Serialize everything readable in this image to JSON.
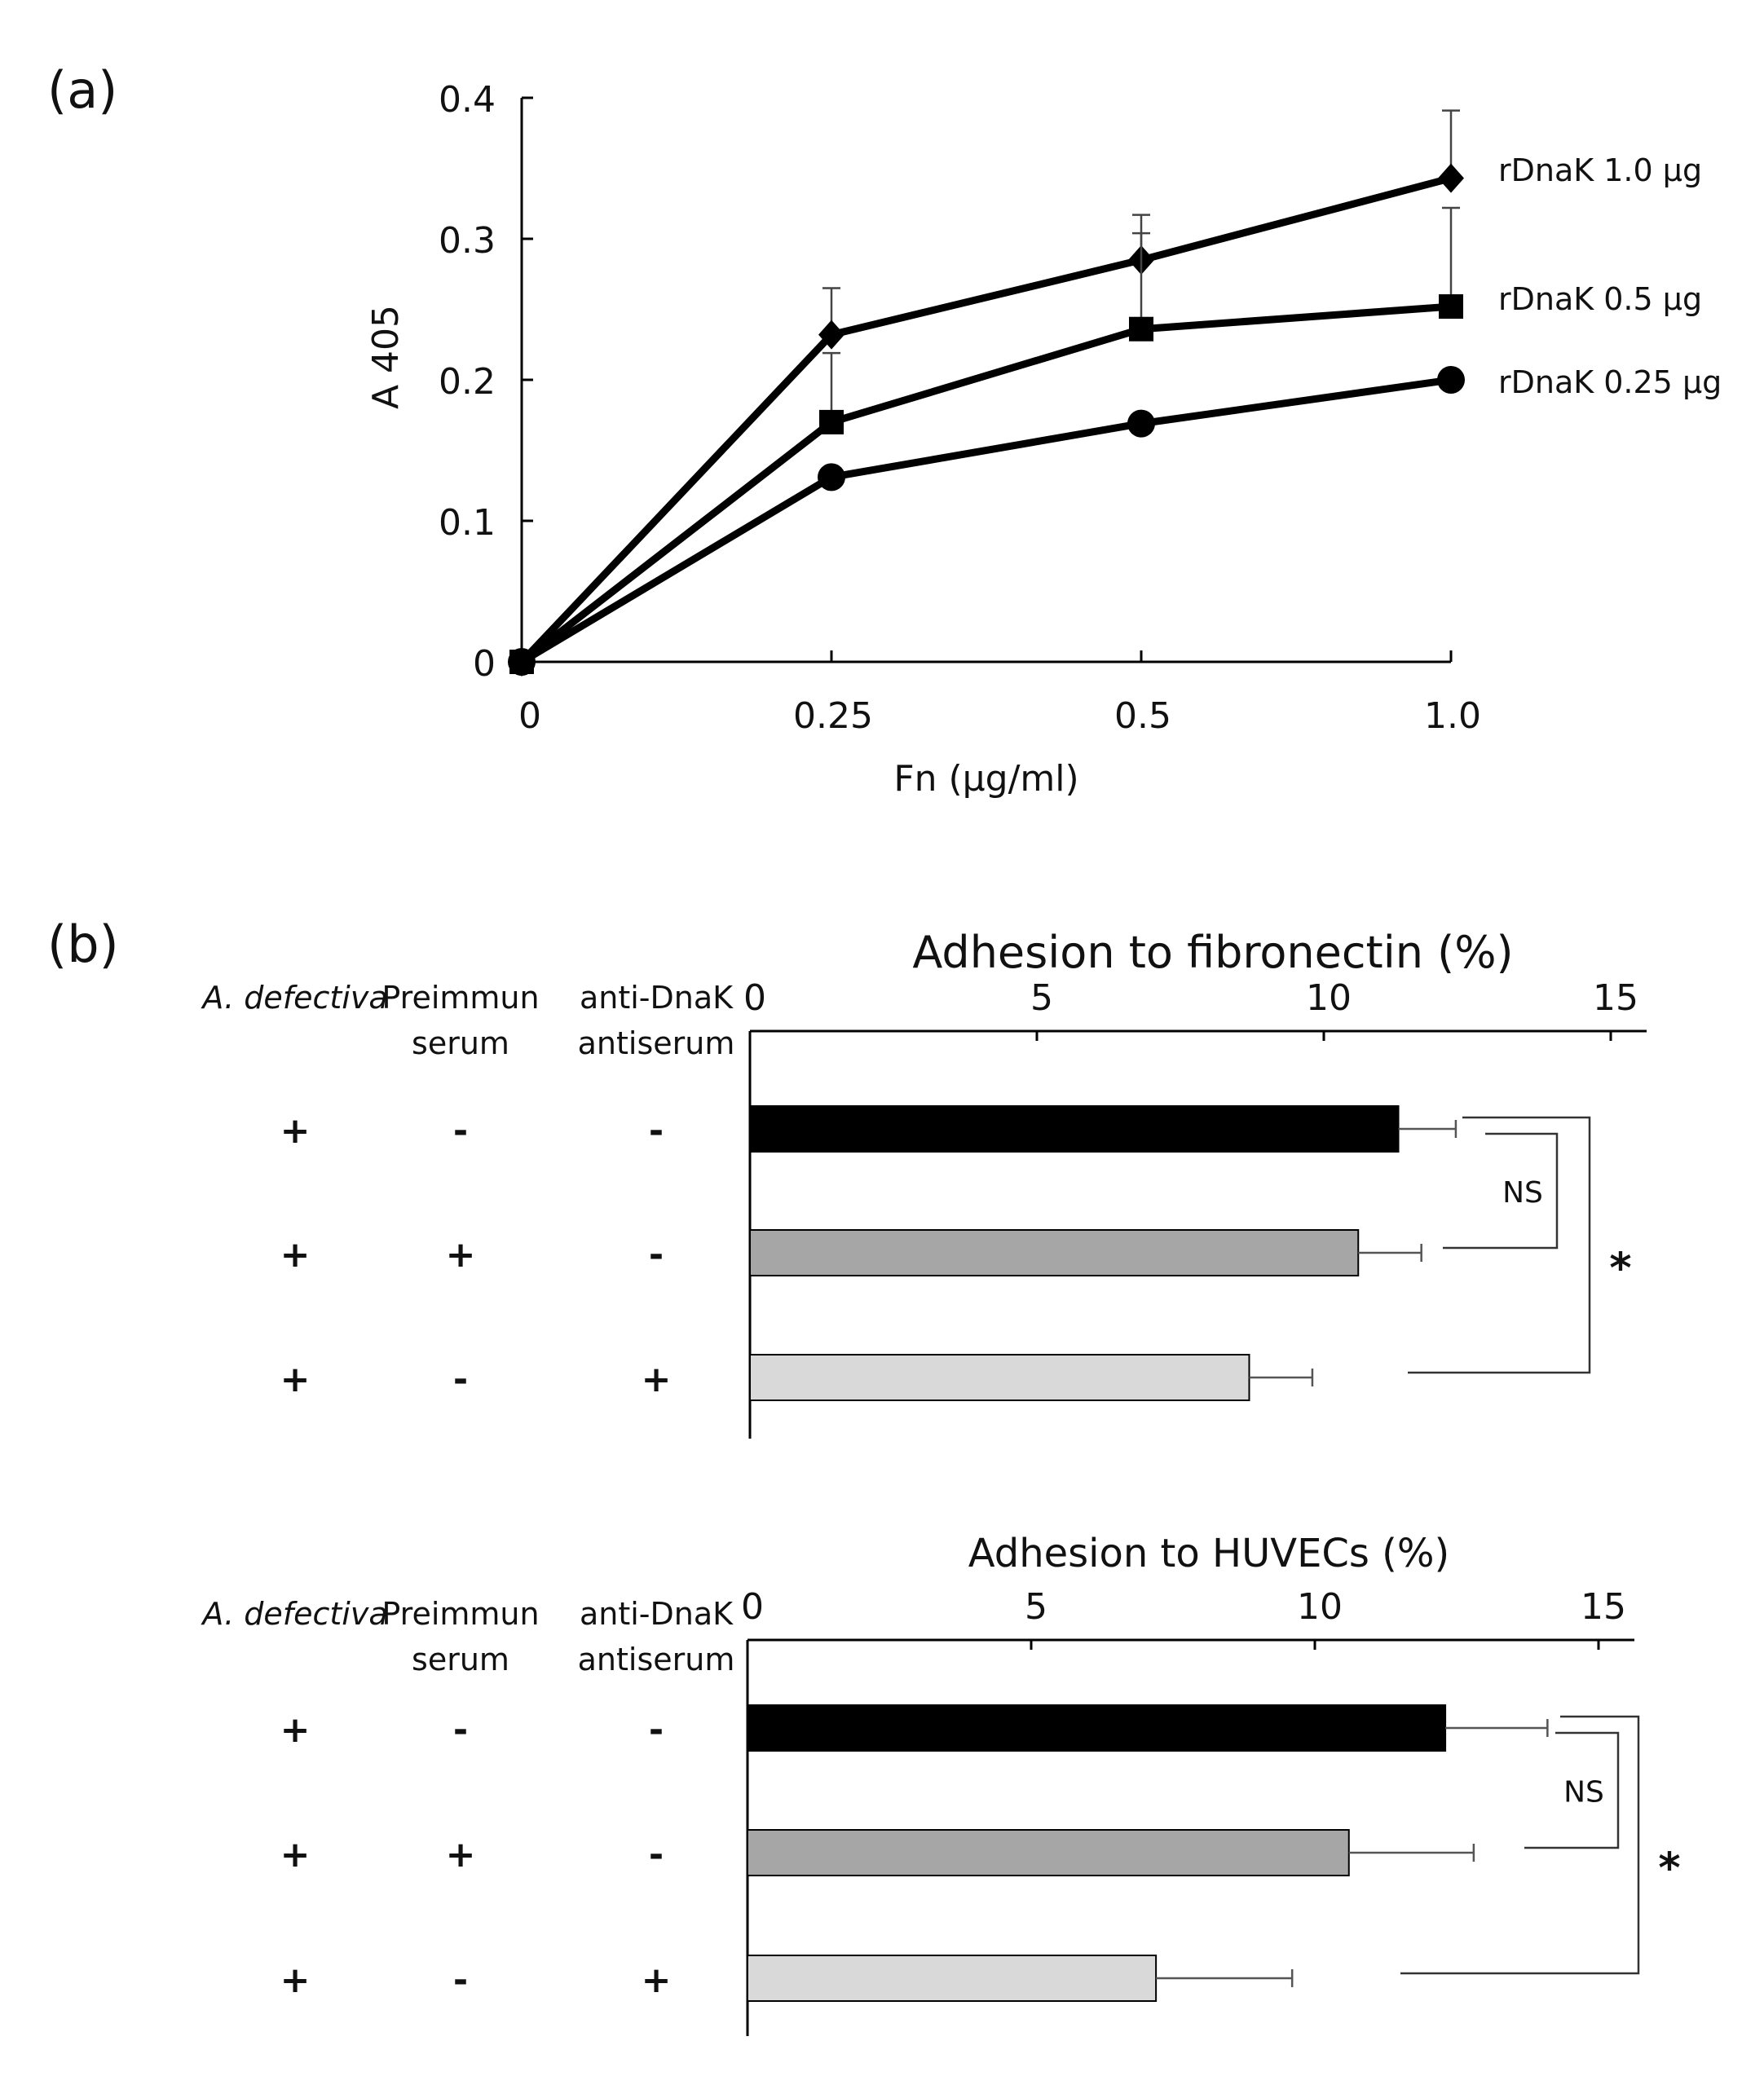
{
  "panel_a": {
    "label": "(a)"
  },
  "panel_b": {
    "label": "(b)"
  },
  "conditions": {
    "headers": [
      "A. defectiva",
      "Preimmun\nserum",
      "anti-DnaK\nantiserum"
    ],
    "rows": [
      [
        "+",
        "-",
        "-"
      ],
      [
        "+",
        "+",
        "-"
      ],
      [
        "+",
        "-",
        "+"
      ]
    ]
  },
  "chart_data": [
    {
      "type": "line",
      "title": "",
      "xlabel": "Fn (μg/ml)",
      "ylabel": "A 405",
      "x": [
        "0",
        "0.25",
        "0.5",
        "1.0"
      ],
      "ylim": [
        0,
        0.4
      ],
      "yticks": [
        "0",
        "0.1",
        "0.2",
        "0.3",
        "0.4"
      ],
      "series": [
        {
          "name": "rDnaK 1.0 μg",
          "marker": "diamond",
          "values": [
            0,
            0.232,
            0.285,
            0.343
          ],
          "errors": [
            0,
            0.033,
            0.032,
            0.048
          ]
        },
        {
          "name": "rDnaK 0.5 μg",
          "marker": "square",
          "values": [
            0,
            0.17,
            0.236,
            0.252
          ],
          "errors": [
            0,
            0.049,
            0.068,
            0.07
          ]
        },
        {
          "name": "rDnaK 0.25 μg",
          "marker": "circle",
          "values": [
            0,
            0.131,
            0.169,
            0.2
          ],
          "errors": [
            0,
            0.0,
            0.0,
            0.0
          ]
        }
      ]
    },
    {
      "type": "bar",
      "orientation": "horizontal",
      "title": "Adhesion to fibronectin (%)",
      "xlim": [
        0,
        15
      ],
      "xticks": [
        "0",
        "5",
        "10",
        "15"
      ],
      "values": [
        11.3,
        10.6,
        8.7
      ],
      "errors": [
        1.0,
        1.1,
        1.1
      ],
      "colors": [
        "#000000",
        "#a6a6a6",
        "#d9d9d9"
      ],
      "significance": [
        {
          "pair": [
            0,
            1
          ],
          "label": "NS"
        },
        {
          "pair": [
            0,
            2
          ],
          "label": "*"
        }
      ]
    },
    {
      "type": "bar",
      "orientation": "horizontal",
      "title": "Adhesion to HUVECs (%)",
      "xlim": [
        0,
        15
      ],
      "xticks": [
        "0",
        "5",
        "10",
        "15"
      ],
      "values": [
        12.3,
        10.6,
        7.2
      ],
      "errors": [
        1.8,
        2.2,
        2.4
      ],
      "colors": [
        "#000000",
        "#a6a6a6",
        "#d9d9d9"
      ],
      "significance": [
        {
          "pair": [
            0,
            1
          ],
          "label": "NS"
        },
        {
          "pair": [
            0,
            2
          ],
          "label": "*"
        }
      ]
    }
  ]
}
